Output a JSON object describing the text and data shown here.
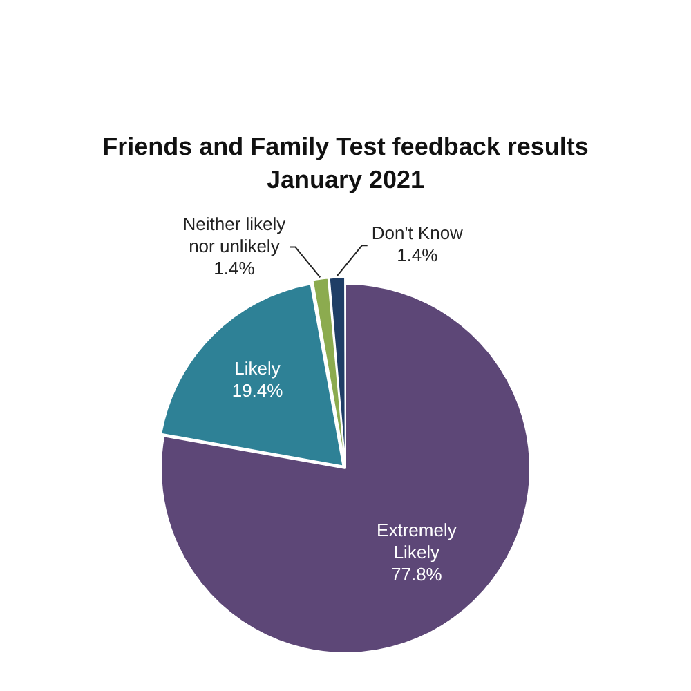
{
  "chart_data": {
    "type": "pie",
    "title": "Friends and Family Test feedback results January 2021",
    "categories": [
      "Extremely Likely",
      "Likely",
      "Neither likely nor unlikely",
      "Don't Know"
    ],
    "values": [
      77.8,
      19.4,
      1.4,
      1.4
    ],
    "colors": [
      "#5d4777",
      "#2e8196",
      "#8cab4f",
      "#1f3e66"
    ],
    "value_labels": [
      "77.8%",
      "19.4%",
      "1.4%",
      "1.4%"
    ],
    "legend": false
  }
}
